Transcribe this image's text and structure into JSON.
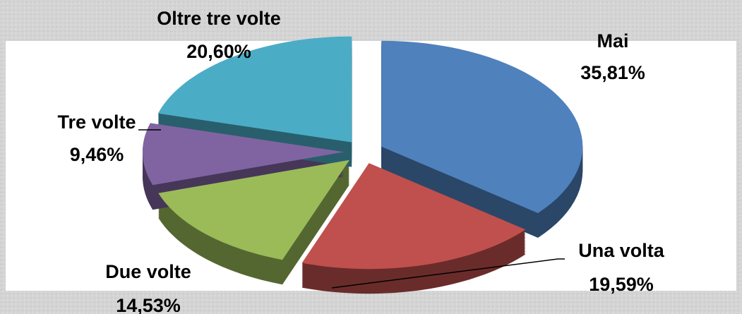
{
  "chart_data": {
    "type": "pie",
    "categories": [
      "Mai",
      "Una volta",
      "Due volte",
      "Tre volte",
      "Oltre tre volte"
    ],
    "values": [
      35.81,
      19.59,
      14.53,
      9.46,
      20.6
    ],
    "value_labels": [
      "35,81%",
      "19,59%",
      "14,53%",
      "9,46%",
      "20,60%"
    ],
    "colors": [
      "#4f81bd",
      "#c0504d",
      "#9bbb59",
      "#8064a2",
      "#4bacc6"
    ]
  }
}
